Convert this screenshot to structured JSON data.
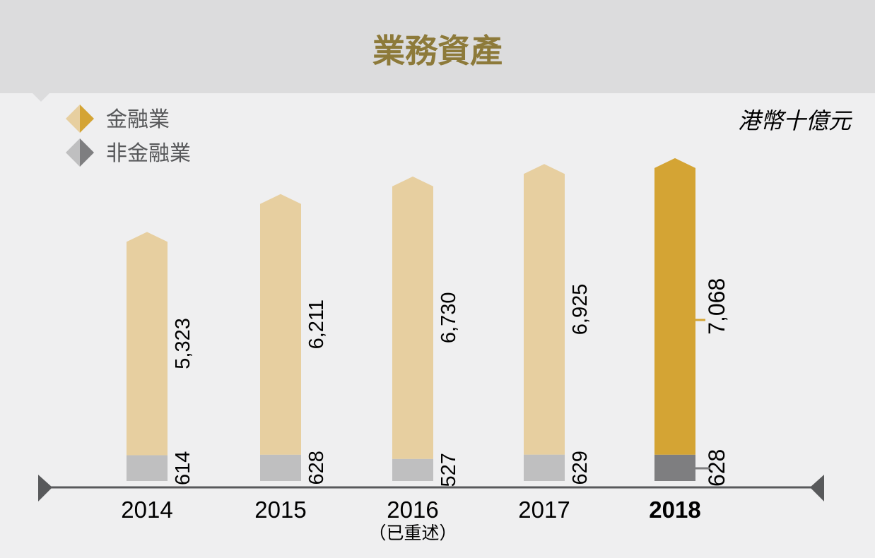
{
  "chart_data": {
    "type": "bar",
    "stacked": true,
    "title": "業務資產",
    "unit": "港幣十億元",
    "categories": [
      "2014",
      "2015",
      "2016",
      "2017",
      "2018"
    ],
    "category_notes": [
      "",
      "",
      "（已重述）",
      "",
      ""
    ],
    "highlight_category": "2018",
    "series": [
      {
        "name": "非金融業",
        "values": [
          614,
          628,
          527,
          629,
          628
        ],
        "labels": [
          "614",
          "628",
          "527",
          "629",
          "628"
        ]
      },
      {
        "name": "金融業",
        "values": [
          5323,
          6211,
          6730,
          6925,
          7068
        ],
        "labels": [
          "5,323",
          "6,211",
          "6,730",
          "6,925",
          "7,068"
        ]
      }
    ],
    "legend": {
      "placement": "top-left"
    },
    "grid": false,
    "colors": {
      "financial": "#e7cfa0",
      "financial_highlight": "#d4a434",
      "non_financial": "#bfbfc0",
      "non_financial_highlight": "#7e7e80",
      "title": "#8d7a3a",
      "header_bg": "#dcdcdd",
      "plot_bg": "#efeff0",
      "axis": "#58595b",
      "text": "#000000"
    }
  }
}
